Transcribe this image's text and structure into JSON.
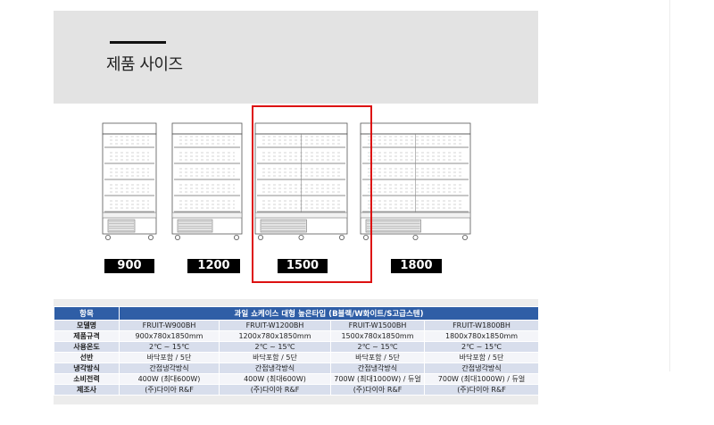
{
  "header": {
    "title": "제품 사이즈"
  },
  "sizes": [
    {
      "label": "900",
      "selected": false
    },
    {
      "label": "1200",
      "selected": false
    },
    {
      "label": "1500",
      "selected": true
    },
    {
      "label": "1800",
      "selected": false
    }
  ],
  "highlight_color": "#d11111",
  "table": {
    "header_item": "항목",
    "header_title": "과일 쇼케이스 대형 높은타입 (B블랙/W화이트/S고급스텐)",
    "header_color": "#2f5ea6",
    "rows": [
      {
        "label": "모델명",
        "values": [
          "FRUIT-W900BH",
          "FRUIT-W1200BH",
          "FRUIT-W1500BH",
          "FRUIT-W1800BH"
        ]
      },
      {
        "label": "제품규격",
        "values": [
          "900x780x1850mm",
          "1200x780x1850mm",
          "1500x780x1850mm",
          "1800x780x1850mm"
        ]
      },
      {
        "label": "사용온도",
        "values": [
          "2℃ ~ 15℃",
          "2℃ ~ 15℃",
          "2℃ ~ 15℃",
          "2℃ ~ 15℃"
        ]
      },
      {
        "label": "선반",
        "values": [
          "바닥포함 / 5단",
          "바닥포함 / 5단",
          "바닥포함 / 5단",
          "바닥포함 / 5단"
        ]
      },
      {
        "label": "냉각방식",
        "values": [
          "간접냉각방식",
          "간접냉각방식",
          "간접냉각방식",
          "간접냉각방식"
        ]
      },
      {
        "label": "소비전력",
        "values": [
          "400W (최대600W)",
          "400W (최대600W)",
          "700W (최대1000W) / 듀얼",
          "700W (최대1000W) / 듀얼"
        ]
      },
      {
        "label": "제조사",
        "values": [
          "(주)다이아 R&F",
          "(주)다이아 R&F",
          "(주)다이아 R&F",
          "(주)다이아 R&F"
        ]
      }
    ]
  }
}
